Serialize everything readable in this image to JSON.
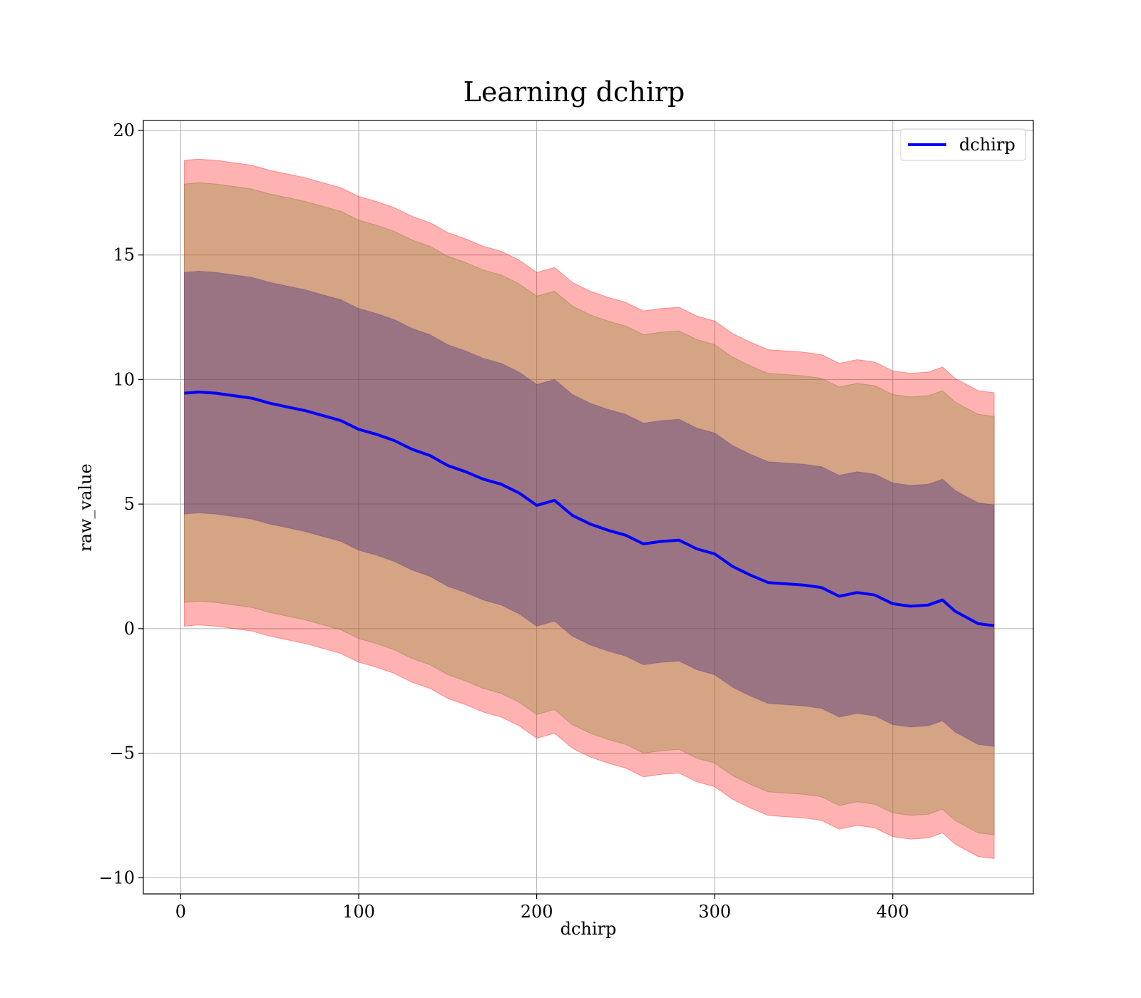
{
  "chart_data": {
    "type": "line",
    "title": "Learning dchirp",
    "xlabel": "dchirp",
    "ylabel": "raw_value",
    "xlim": [
      -21,
      479
    ],
    "ylim": [
      -10.65,
      20.4
    ],
    "xticks": [
      0,
      100,
      200,
      300,
      400
    ],
    "yticks": [
      -10,
      -5,
      0,
      5,
      10,
      15,
      20
    ],
    "ytick_labels": [
      "−10",
      "−5",
      "0",
      "5",
      "10",
      "15",
      "20"
    ],
    "grid": true,
    "legend": {
      "placement": "top-right",
      "entries": [
        "dchirp"
      ]
    },
    "colors": {
      "line": "#0000ff",
      "band": "#ff0000",
      "inner_band": "#4d3380",
      "edge": "#000000"
    },
    "series": [
      {
        "name": "dchirp",
        "x": [
          2,
          10,
          20,
          30,
          40,
          50,
          60,
          70,
          80,
          90,
          100,
          110,
          120,
          130,
          140,
          150,
          160,
          170,
          180,
          190,
          200,
          210,
          220,
          230,
          240,
          250,
          260,
          270,
          280,
          290,
          300,
          310,
          320,
          330,
          340,
          350,
          360,
          370,
          380,
          390,
          400,
          410,
          420,
          428,
          435,
          448,
          457
        ],
        "y": [
          9.45,
          9.5,
          9.45,
          9.35,
          9.25,
          9.05,
          8.9,
          8.75,
          8.55,
          8.35,
          8.0,
          7.8,
          7.55,
          7.2,
          6.95,
          6.55,
          6.3,
          6.0,
          5.8,
          5.45,
          4.95,
          5.15,
          4.55,
          4.2,
          3.95,
          3.75,
          3.4,
          3.5,
          3.55,
          3.2,
          3.0,
          2.5,
          2.15,
          1.85,
          1.8,
          1.75,
          1.65,
          1.3,
          1.45,
          1.35,
          1.0,
          0.9,
          0.95,
          1.15,
          0.7,
          0.2,
          0.12
        ]
      }
    ],
    "bands": [
      {
        "level": "outer",
        "half_width": 9.35
      },
      {
        "level": "middle",
        "half_width": 8.4
      },
      {
        "level": "inner",
        "half_width": 4.85
      }
    ]
  }
}
